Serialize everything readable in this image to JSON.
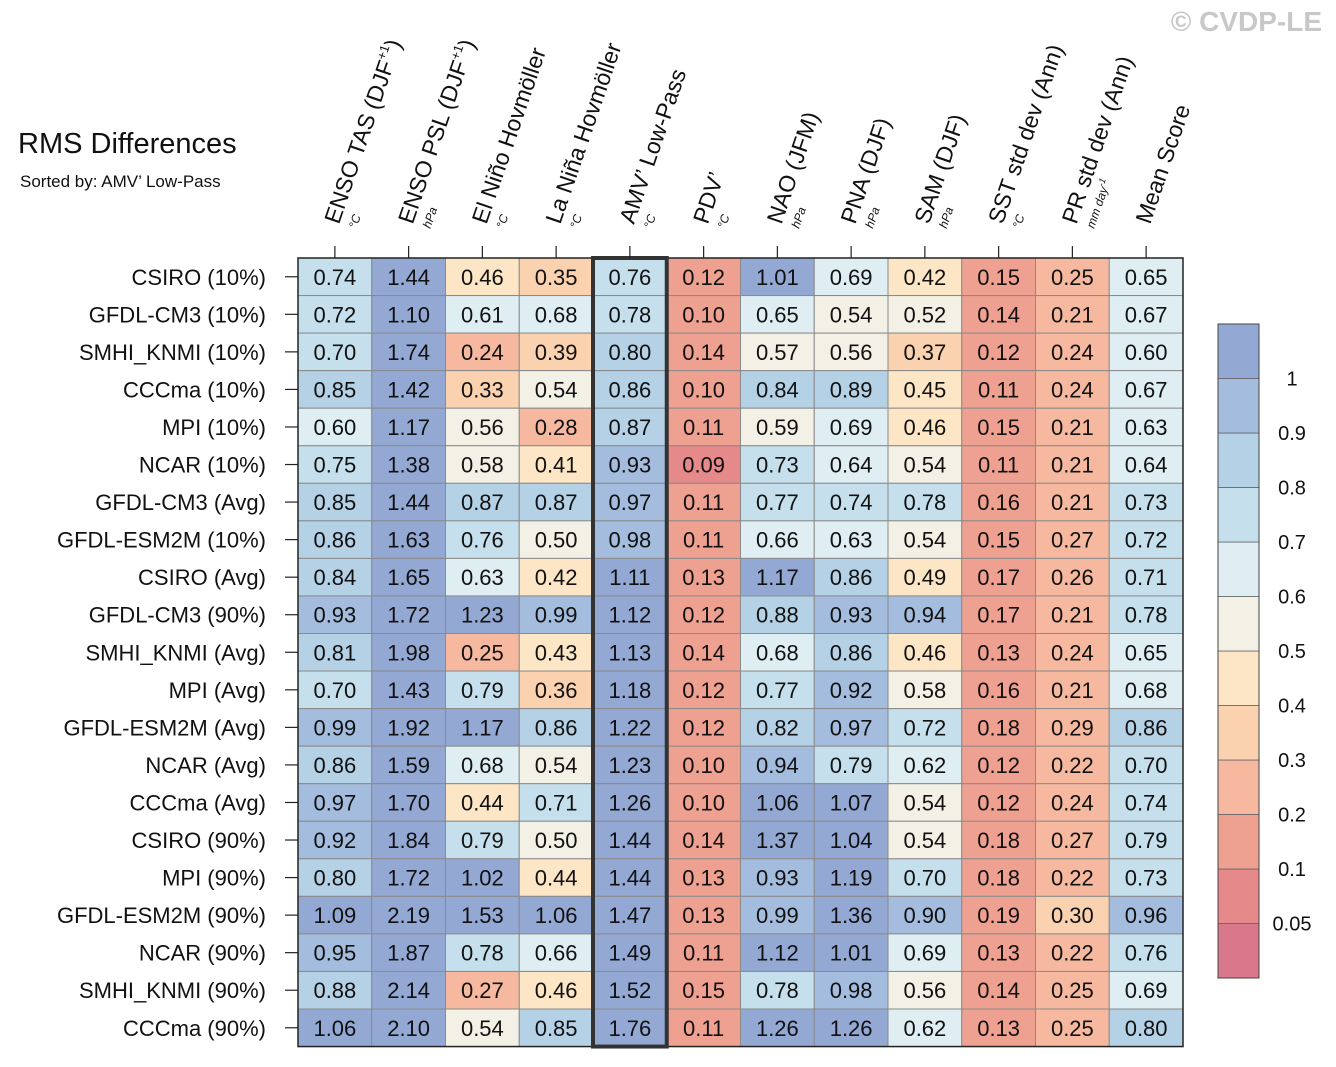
{
  "header": {
    "title": "RMS Differences",
    "subtitle": "Sorted by: AMV’ Low-Pass",
    "copyright": "© CVDP-LE"
  },
  "colors": {
    "bins": [
      "#d9788a",
      "#e6898a",
      "#eea091",
      "#f6b9a0",
      "#fad2b0",
      "#fde6c6",
      "#f3f1e6",
      "#deeef3",
      "#c5e0ec",
      "#b5d1e6",
      "#a4bcdd",
      "#94a8d4"
    ],
    "cell_border": "#8a8a8a",
    "highlight_border": "#333333"
  },
  "chart_data": {
    "type": "heatmap",
    "title": "RMS Differences",
    "subtitle": "Sorted by: AMV’ Low-Pass",
    "columns": [
      {
        "label": "ENSO TAS (DJF",
        "sup": "+1",
        "close": ")",
        "unit": "°C"
      },
      {
        "label": "ENSO PSL (DJF",
        "sup": "+1",
        "close": ")",
        "unit": "hPa"
      },
      {
        "label": "El Niño Hovmöller",
        "sup": "",
        "close": "",
        "unit": "°C"
      },
      {
        "label": "La Niña Hovmöller",
        "sup": "",
        "close": "",
        "unit": "°C"
      },
      {
        "label": "AMV’ Low-Pass",
        "sup": "",
        "close": "",
        "unit": "°C"
      },
      {
        "label": "PDV’",
        "sup": "",
        "close": "",
        "unit": "°C"
      },
      {
        "label": "NAO (JFM)",
        "sup": "",
        "close": "",
        "unit": "hPa"
      },
      {
        "label": "PNA (DJF)",
        "sup": "",
        "close": "",
        "unit": "hPa"
      },
      {
        "label": "SAM (DJF)",
        "sup": "",
        "close": "",
        "unit": "hPa"
      },
      {
        "label": "SST std dev (Ann)",
        "sup": "",
        "close": "",
        "unit": "°C"
      },
      {
        "label": "PR std dev (Ann)",
        "sup": "",
        "close": "",
        "unit": "mm day",
        "unit_sup": "-1"
      },
      {
        "label": "Mean Score",
        "sup": "",
        "close": "",
        "unit": ""
      }
    ],
    "rows": [
      "CSIRO (10%)",
      "GFDL-CM3 (10%)",
      "SMHI_KNMI (10%)",
      "CCCma (10%)",
      "MPI (10%)",
      "NCAR (10%)",
      "GFDL-CM3 (Avg)",
      "GFDL-ESM2M (10%)",
      "CSIRO (Avg)",
      "GFDL-CM3 (90%)",
      "SMHI_KNMI (Avg)",
      "MPI (Avg)",
      "GFDL-ESM2M (Avg)",
      "NCAR (Avg)",
      "CCCma (Avg)",
      "CSIRO (90%)",
      "MPI (90%)",
      "GFDL-ESM2M (90%)",
      "NCAR (90%)",
      "SMHI_KNMI (90%)",
      "CCCma (90%)"
    ],
    "values": [
      [
        "0.74",
        "1.44",
        "0.46",
        "0.35",
        "0.76",
        "0.12",
        "1.01",
        "0.69",
        "0.42",
        "0.15",
        "0.25",
        "0.65"
      ],
      [
        "0.72",
        "1.10",
        "0.61",
        "0.68",
        "0.78",
        "0.10",
        "0.65",
        "0.54",
        "0.52",
        "0.14",
        "0.21",
        "0.67"
      ],
      [
        "0.70",
        "1.74",
        "0.24",
        "0.39",
        "0.80",
        "0.14",
        "0.57",
        "0.56",
        "0.37",
        "0.12",
        "0.24",
        "0.60"
      ],
      [
        "0.85",
        "1.42",
        "0.33",
        "0.54",
        "0.86",
        "0.10",
        "0.84",
        "0.89",
        "0.45",
        "0.11",
        "0.24",
        "0.67"
      ],
      [
        "0.60",
        "1.17",
        "0.56",
        "0.28",
        "0.87",
        "0.11",
        "0.59",
        "0.69",
        "0.46",
        "0.15",
        "0.21",
        "0.63"
      ],
      [
        "0.75",
        "1.38",
        "0.58",
        "0.41",
        "0.93",
        "0.09",
        "0.73",
        "0.64",
        "0.54",
        "0.11",
        "0.21",
        "0.64"
      ],
      [
        "0.85",
        "1.44",
        "0.87",
        "0.87",
        "0.97",
        "0.11",
        "0.77",
        "0.74",
        "0.78",
        "0.16",
        "0.21",
        "0.73"
      ],
      [
        "0.86",
        "1.63",
        "0.76",
        "0.50",
        "0.98",
        "0.11",
        "0.66",
        "0.63",
        "0.54",
        "0.15",
        "0.27",
        "0.72"
      ],
      [
        "0.84",
        "1.65",
        "0.63",
        "0.42",
        "1.11",
        "0.13",
        "1.17",
        "0.86",
        "0.49",
        "0.17",
        "0.26",
        "0.71"
      ],
      [
        "0.93",
        "1.72",
        "1.23",
        "0.99",
        "1.12",
        "0.12",
        "0.88",
        "0.93",
        "0.94",
        "0.17",
        "0.21",
        "0.78"
      ],
      [
        "0.81",
        "1.98",
        "0.25",
        "0.43",
        "1.13",
        "0.14",
        "0.68",
        "0.86",
        "0.46",
        "0.13",
        "0.24",
        "0.65"
      ],
      [
        "0.70",
        "1.43",
        "0.79",
        "0.36",
        "1.18",
        "0.12",
        "0.77",
        "0.92",
        "0.58",
        "0.16",
        "0.21",
        "0.68"
      ],
      [
        "0.99",
        "1.92",
        "1.17",
        "0.86",
        "1.22",
        "0.12",
        "0.82",
        "0.97",
        "0.72",
        "0.18",
        "0.29",
        "0.86"
      ],
      [
        "0.86",
        "1.59",
        "0.68",
        "0.54",
        "1.23",
        "0.10",
        "0.94",
        "0.79",
        "0.62",
        "0.12",
        "0.22",
        "0.70"
      ],
      [
        "0.97",
        "1.70",
        "0.44",
        "0.71",
        "1.26",
        "0.10",
        "1.06",
        "1.07",
        "0.54",
        "0.12",
        "0.24",
        "0.74"
      ],
      [
        "0.92",
        "1.84",
        "0.79",
        "0.50",
        "1.44",
        "0.14",
        "1.37",
        "1.04",
        "0.54",
        "0.18",
        "0.27",
        "0.79"
      ],
      [
        "0.80",
        "1.72",
        "1.02",
        "0.44",
        "1.44",
        "0.13",
        "0.93",
        "1.19",
        "0.70",
        "0.18",
        "0.22",
        "0.73"
      ],
      [
        "1.09",
        "2.19",
        "1.53",
        "1.06",
        "1.47",
        "0.13",
        "0.99",
        "1.36",
        "0.90",
        "0.19",
        "0.30",
        "0.96"
      ],
      [
        "0.95",
        "1.87",
        "0.78",
        "0.66",
        "1.49",
        "0.11",
        "1.12",
        "1.01",
        "0.69",
        "0.13",
        "0.22",
        "0.76"
      ],
      [
        "0.88",
        "2.14",
        "0.27",
        "0.46",
        "1.52",
        "0.15",
        "0.78",
        "0.98",
        "0.56",
        "0.14",
        "0.25",
        "0.69"
      ],
      [
        "1.06",
        "2.10",
        "0.54",
        "0.85",
        "1.76",
        "0.11",
        "1.26",
        "1.26",
        "0.62",
        "0.13",
        "0.25",
        "0.80"
      ]
    ],
    "highlight_column": "AMV’ Low-Pass",
    "colorbar": {
      "levels": [
        0.05,
        0.1,
        0.2,
        0.3,
        0.4,
        0.5,
        0.6,
        0.7,
        0.8,
        0.9,
        1
      ],
      "labels": [
        "0.05",
        "0.1",
        "0.2",
        "0.3",
        "0.4",
        "0.5",
        "0.6",
        "0.7",
        "0.8",
        "0.9",
        "1"
      ]
    }
  }
}
